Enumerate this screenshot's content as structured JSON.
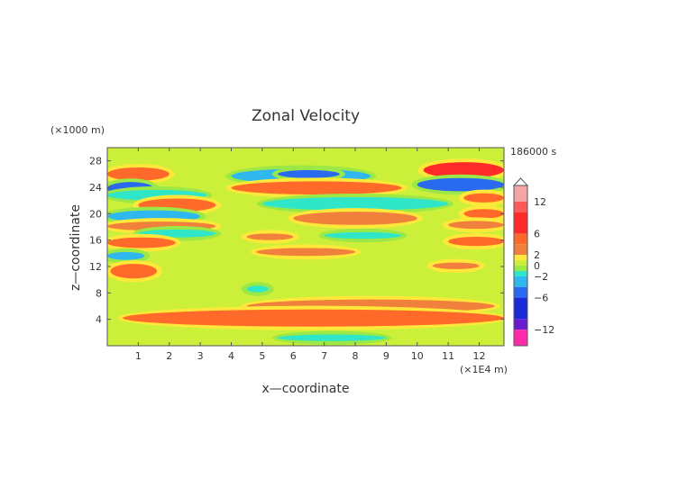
{
  "chart_data": {
    "type": "heatmap",
    "title": "Zonal Velocity",
    "xlabel": "x—coordinate",
    "ylabel": "z—coordinate",
    "x_unit": "(×1E4 m)",
    "y_unit": "(×1000 m)",
    "time_label": "186000 s",
    "xlim": [
      0,
      12.8
    ],
    "ylim": [
      0,
      30
    ],
    "x_ticks": [
      "1",
      "2",
      "3",
      "4",
      "5",
      "6",
      "7",
      "8",
      "9",
      "10",
      "11",
      "12"
    ],
    "y_ticks": [
      "4",
      "8",
      "12",
      "16",
      "20",
      "24",
      "28"
    ],
    "colorbar": {
      "tick_labels": [
        "12",
        "6",
        "2",
        "0",
        "−2",
        "−6",
        "−12"
      ],
      "tick_values": [
        12,
        6,
        2,
        0,
        -2,
        -6,
        -12
      ],
      "range": [
        -15,
        15
      ],
      "colors": [
        {
          "from": 12,
          "to": 15,
          "color": "#f4a6a6"
        },
        {
          "from": 10,
          "to": 12,
          "color": "#ff5a5a"
        },
        {
          "from": 6,
          "to": 10,
          "color": "#ff2a2a"
        },
        {
          "from": 4,
          "to": 6,
          "color": "#ff6a2a"
        },
        {
          "from": 2,
          "to": 4,
          "color": "#f0803c"
        },
        {
          "from": 1,
          "to": 2,
          "color": "#ffe83a"
        },
        {
          "from": 0,
          "to": 1,
          "color": "#ccf03a"
        },
        {
          "from": -1,
          "to": 0,
          "color": "#9be846"
        },
        {
          "from": -2,
          "to": -1,
          "color": "#2fe6c8"
        },
        {
          "from": -4,
          "to": -2,
          "color": "#2fb8f0"
        },
        {
          "from": -6,
          "to": -4,
          "color": "#2a6af0"
        },
        {
          "from": -10,
          "to": -6,
          "color": "#1a2ad8"
        },
        {
          "from": -12,
          "to": -10,
          "color": "#6a1ad0"
        },
        {
          "from": -15,
          "to": -12,
          "color": "#ff2aaa"
        }
      ]
    },
    "bands": [
      {
        "z": 26.0,
        "x0": 0.0,
        "x1": 2.0,
        "value": 5,
        "thick": 1.0
      },
      {
        "z": 26.6,
        "x0": 10.2,
        "x1": 12.8,
        "value": 6,
        "thick": 1.2
      },
      {
        "z": 25.7,
        "x0": 4.0,
        "x1": 8.5,
        "value": -4,
        "thick": 1.1
      },
      {
        "z": 26.0,
        "x0": 5.5,
        "x1": 7.5,
        "value": -6,
        "thick": 0.6
      },
      {
        "z": 24.4,
        "x0": 10.0,
        "x1": 12.8,
        "value": -5,
        "thick": 1.0
      },
      {
        "z": 23.8,
        "x0": 0.0,
        "x1": 1.5,
        "value": -5,
        "thick": 1.0
      },
      {
        "z": 23.9,
        "x0": 4.0,
        "x1": 9.5,
        "value": 4,
        "thick": 1.0
      },
      {
        "z": 22.8,
        "x0": 0.0,
        "x1": 3.2,
        "value": -2,
        "thick": 0.8
      },
      {
        "z": 22.4,
        "x0": 11.5,
        "x1": 12.8,
        "value": 4,
        "thick": 0.7
      },
      {
        "z": 21.3,
        "x0": 1.0,
        "x1": 3.5,
        "value": 4,
        "thick": 1.0
      },
      {
        "z": 21.5,
        "x0": 5.0,
        "x1": 11.0,
        "value": -2,
        "thick": 1.0
      },
      {
        "z": 19.6,
        "x0": 0.0,
        "x1": 3.0,
        "value": -3,
        "thick": 0.9
      },
      {
        "z": 19.3,
        "x0": 6.0,
        "x1": 10.0,
        "value": 3,
        "thick": 1.0
      },
      {
        "z": 20.0,
        "x0": 11.5,
        "x1": 12.8,
        "value": 4,
        "thick": 0.7
      },
      {
        "z": 18.1,
        "x0": 0.0,
        "x1": 3.5,
        "value": 3,
        "thick": 0.7
      },
      {
        "z": 18.3,
        "x0": 11.0,
        "x1": 12.8,
        "value": 3,
        "thick": 0.6
      },
      {
        "z": 17.0,
        "x0": 1.0,
        "x1": 3.5,
        "value": -2,
        "thick": 0.6
      },
      {
        "z": 16.5,
        "x0": 4.5,
        "x1": 6.0,
        "value": 3,
        "thick": 0.5
      },
      {
        "z": 16.7,
        "x0": 7.0,
        "x1": 9.5,
        "value": -2,
        "thick": 0.5
      },
      {
        "z": 15.6,
        "x0": 0.0,
        "x1": 2.2,
        "value": 4,
        "thick": 0.8
      },
      {
        "z": 15.8,
        "x0": 11.0,
        "x1": 12.8,
        "value": 4,
        "thick": 0.7
      },
      {
        "z": 14.2,
        "x0": 4.8,
        "x1": 8.0,
        "value": 3,
        "thick": 0.6
      },
      {
        "z": 13.6,
        "x0": 0.0,
        "x1": 1.2,
        "value": -3,
        "thick": 0.6
      },
      {
        "z": 11.3,
        "x0": 0.1,
        "x1": 1.6,
        "value": 4,
        "thick": 1.1
      },
      {
        "z": 12.1,
        "x0": 10.5,
        "x1": 12.0,
        "value": 3,
        "thick": 0.5
      },
      {
        "z": 8.6,
        "x0": 4.5,
        "x1": 5.2,
        "value": -2,
        "thick": 0.5
      },
      {
        "z": 6.0,
        "x0": 4.5,
        "x1": 12.5,
        "value": 3,
        "thick": 1.0
      },
      {
        "z": 4.2,
        "x0": 0.5,
        "x1": 12.8,
        "value": 4,
        "thick": 1.3
      },
      {
        "z": 1.2,
        "x0": 5.5,
        "x1": 9.0,
        "value": -2,
        "thick": 0.5
      }
    ]
  }
}
